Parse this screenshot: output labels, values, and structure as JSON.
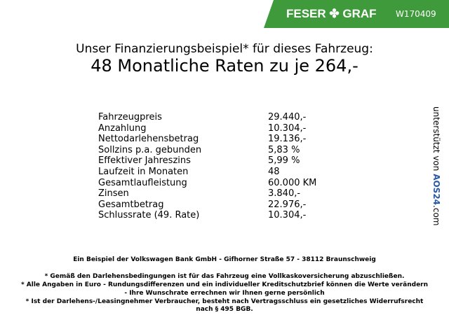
{
  "header": {
    "brand": "FESER ✤ GRAF",
    "code": "W170409",
    "color": "#3f9a3c"
  },
  "title": "Unser Finanzierungsbeispiel* für dieses Fahrzeug:",
  "subtitle": "48 Monatliche Raten zu je 264,-",
  "rows": [
    {
      "label": "Fahrzeugpreis",
      "value": "29.440,-"
    },
    {
      "label": "Anzahlung",
      "value": "10.304,-"
    },
    {
      "label": "Nettodarlehensbetrag",
      "value": "19.136,-"
    },
    {
      "label": "Sollzins p.a. gebunden",
      "value": "5,83 %"
    },
    {
      "label": "Effektiver Jahreszins",
      "value": "5,99 %"
    },
    {
      "label": "Laufzeit in Monaten",
      "value": "48"
    },
    {
      "label": "Gesamtlaufleistung",
      "value": "60.000 KM"
    },
    {
      "label": "Zinsen",
      "value": "3.840,-"
    },
    {
      "label": "Gesamtbetrag",
      "value": "22.976,-"
    },
    {
      "label": "Schlussrate (49. Rate)",
      "value": "10.304,-"
    }
  ],
  "side": {
    "prefix": "unterstützt von ",
    "logo": "AOS24",
    "suffix": ".com"
  },
  "footer": {
    "bank": "Ein Beispiel der Volkswagen Bank GmbH - Gifhorner Straße 57 - 38112 Braunschweig",
    "notes": [
      "* Gemäß den Darlehensbedingungen ist für das Fahrzeug eine Vollkaskoversicherung abzuschließen.",
      "* Alle Angaben in Euro - Rundungsdifferenzen und ein individueller Kreditschutzbrief können die Werte verändern",
      "- Ihre Wunschrate errechnen wir Ihnen gerne persönlich",
      "* Ist der Darlehens-/Leasingnehmer Verbraucher, besteht nach Vertragsschluss ein gesetzliches Widerrufsrecht",
      "nach § 495 BGB."
    ]
  }
}
